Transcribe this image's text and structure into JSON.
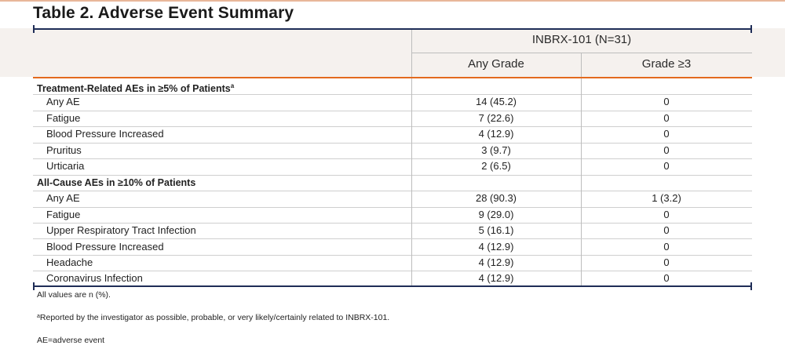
{
  "title": "Table 2. Adverse Event Summary",
  "table": {
    "group_header": "INBRX-101 (N=31)",
    "columns": [
      "Any Grade",
      "Grade ≥3"
    ],
    "sections": [
      {
        "heading": "Treatment-Related AEs in ≥5% of Patients",
        "heading_sup": "a",
        "rows": [
          {
            "label": "Any AE",
            "any_grade": "14 (45.2)",
            "grade3": "0"
          },
          {
            "label": "Fatigue",
            "any_grade": "7 (22.6)",
            "grade3": "0"
          },
          {
            "label": "Blood Pressure Increased",
            "any_grade": "4 (12.9)",
            "grade3": "0"
          },
          {
            "label": "Pruritus",
            "any_grade": "3 (9.7)",
            "grade3": "0"
          },
          {
            "label": "Urticaria",
            "any_grade": "2 (6.5)",
            "grade3": "0"
          }
        ]
      },
      {
        "heading": "All-Cause AEs in ≥10% of Patients",
        "heading_sup": "",
        "rows": [
          {
            "label": "Any AE",
            "any_grade": "28 (90.3)",
            "grade3": "1 (3.2)"
          },
          {
            "label": "Fatigue",
            "any_grade": "9 (29.0)",
            "grade3": "0"
          },
          {
            "label": "Upper Respiratory Tract Infection",
            "any_grade": "5 (16.1)",
            "grade3": "0"
          },
          {
            "label": "Blood Pressure Increased",
            "any_grade": "4 (12.9)",
            "grade3": "0"
          },
          {
            "label": "Headache",
            "any_grade": "4 (12.9)",
            "grade3": "0"
          },
          {
            "label": "Coronavirus Infection",
            "any_grade": "4 (12.9)",
            "grade3": "0"
          }
        ]
      }
    ]
  },
  "footnotes": {
    "values_note": "All values are n (%).",
    "a_marker": "a",
    "a_note": "Reported by the investigator as possible, probable, or very likely/certainly related to INBRX-101.",
    "abbrev": "AE=adverse event"
  },
  "colors": {
    "navy": "#1f2d57",
    "orange": "#e36a1e",
    "header_band": "#f5f1ee"
  }
}
